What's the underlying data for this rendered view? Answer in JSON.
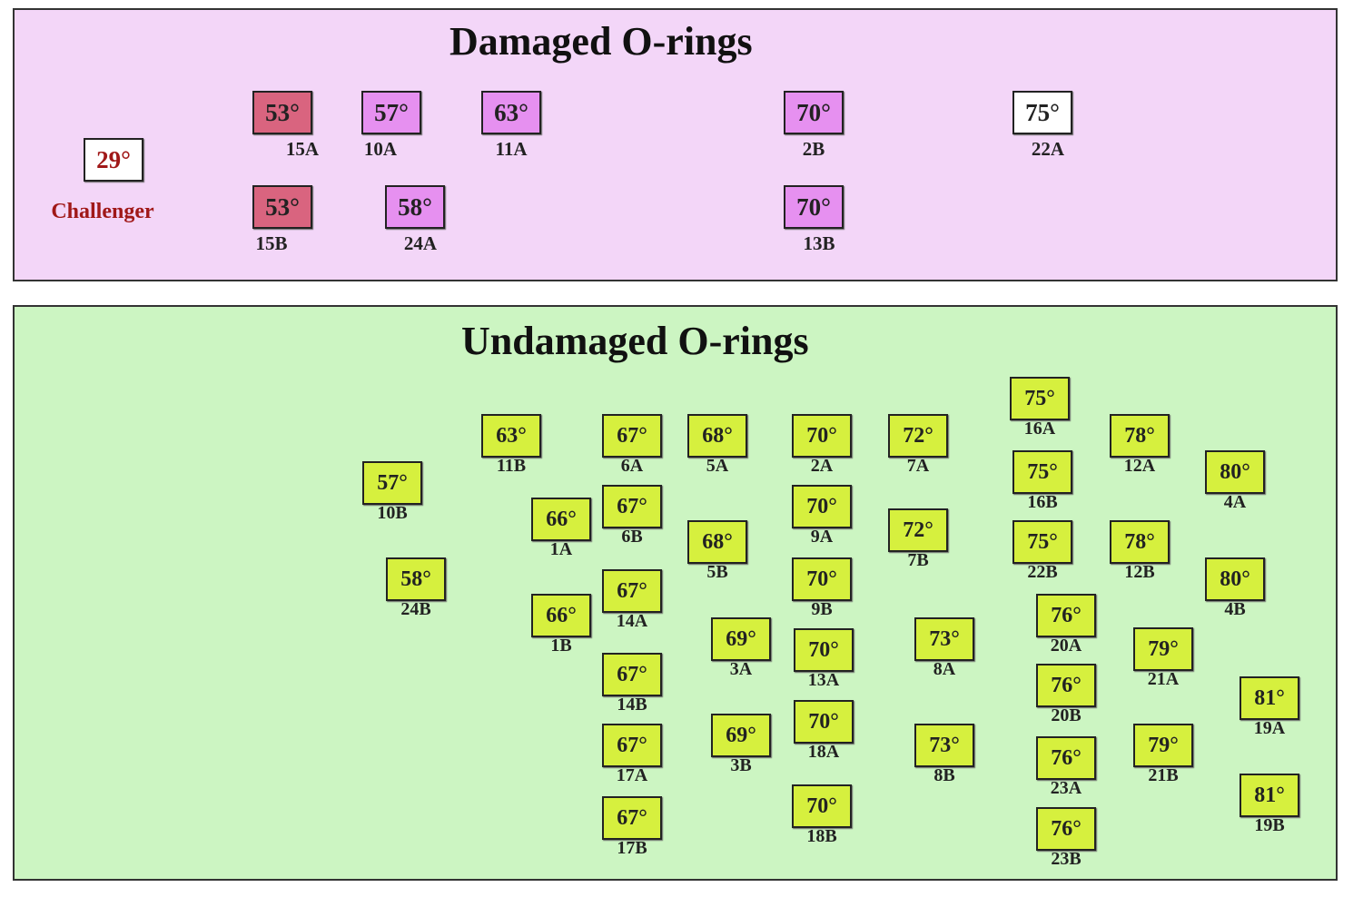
{
  "damaged": {
    "title": "Damaged O-rings",
    "challenger": {
      "temp": "29°",
      "label": "Challenger"
    },
    "items": [
      {
        "temp": "53°",
        "label": "15A"
      },
      {
        "temp": "57°",
        "label": "10A"
      },
      {
        "temp": "63°",
        "label": "11A"
      },
      {
        "temp": "70°",
        "label": "2B"
      },
      {
        "temp": "75°",
        "label": "22A"
      },
      {
        "temp": "53°",
        "label": "15B"
      },
      {
        "temp": "58°",
        "label": "24A"
      },
      {
        "temp": "70°",
        "label": "13B"
      }
    ]
  },
  "undamaged": {
    "title": "Undamaged O-rings",
    "items": [
      {
        "temp": "63°",
        "label": "11B"
      },
      {
        "temp": "57°",
        "label": "10B"
      },
      {
        "temp": "58°",
        "label": "24B"
      },
      {
        "temp": "66°",
        "label": "1A"
      },
      {
        "temp": "66°",
        "label": "1B"
      },
      {
        "temp": "67°",
        "label": "6A"
      },
      {
        "temp": "67°",
        "label": "6B"
      },
      {
        "temp": "67°",
        "label": "14A"
      },
      {
        "temp": "67°",
        "label": "14B"
      },
      {
        "temp": "67°",
        "label": "17A"
      },
      {
        "temp": "67°",
        "label": "17B"
      },
      {
        "temp": "68°",
        "label": "5A"
      },
      {
        "temp": "68°",
        "label": "5B"
      },
      {
        "temp": "69°",
        "label": "3A"
      },
      {
        "temp": "69°",
        "label": "3B"
      },
      {
        "temp": "70°",
        "label": "2A"
      },
      {
        "temp": "70°",
        "label": "9A"
      },
      {
        "temp": "70°",
        "label": "9B"
      },
      {
        "temp": "70°",
        "label": "13A"
      },
      {
        "temp": "70°",
        "label": "18A"
      },
      {
        "temp": "70°",
        "label": "18B"
      },
      {
        "temp": "72°",
        "label": "7A"
      },
      {
        "temp": "72°",
        "label": "7B"
      },
      {
        "temp": "73°",
        "label": "8A"
      },
      {
        "temp": "73°",
        "label": "8B"
      },
      {
        "temp": "75°",
        "label": "16A"
      },
      {
        "temp": "75°",
        "label": "16B"
      },
      {
        "temp": "75°",
        "label": "22B"
      },
      {
        "temp": "76°",
        "label": "20A"
      },
      {
        "temp": "76°",
        "label": "20B"
      },
      {
        "temp": "76°",
        "label": "23A"
      },
      {
        "temp": "76°",
        "label": "23B"
      },
      {
        "temp": "78°",
        "label": "12A"
      },
      {
        "temp": "78°",
        "label": "12B"
      },
      {
        "temp": "79°",
        "label": "21A"
      },
      {
        "temp": "79°",
        "label": "21B"
      },
      {
        "temp": "80°",
        "label": "4A"
      },
      {
        "temp": "80°",
        "label": "4B"
      },
      {
        "temp": "81°",
        "label": "19A"
      },
      {
        "temp": "81°",
        "label": "19B"
      }
    ]
  }
}
